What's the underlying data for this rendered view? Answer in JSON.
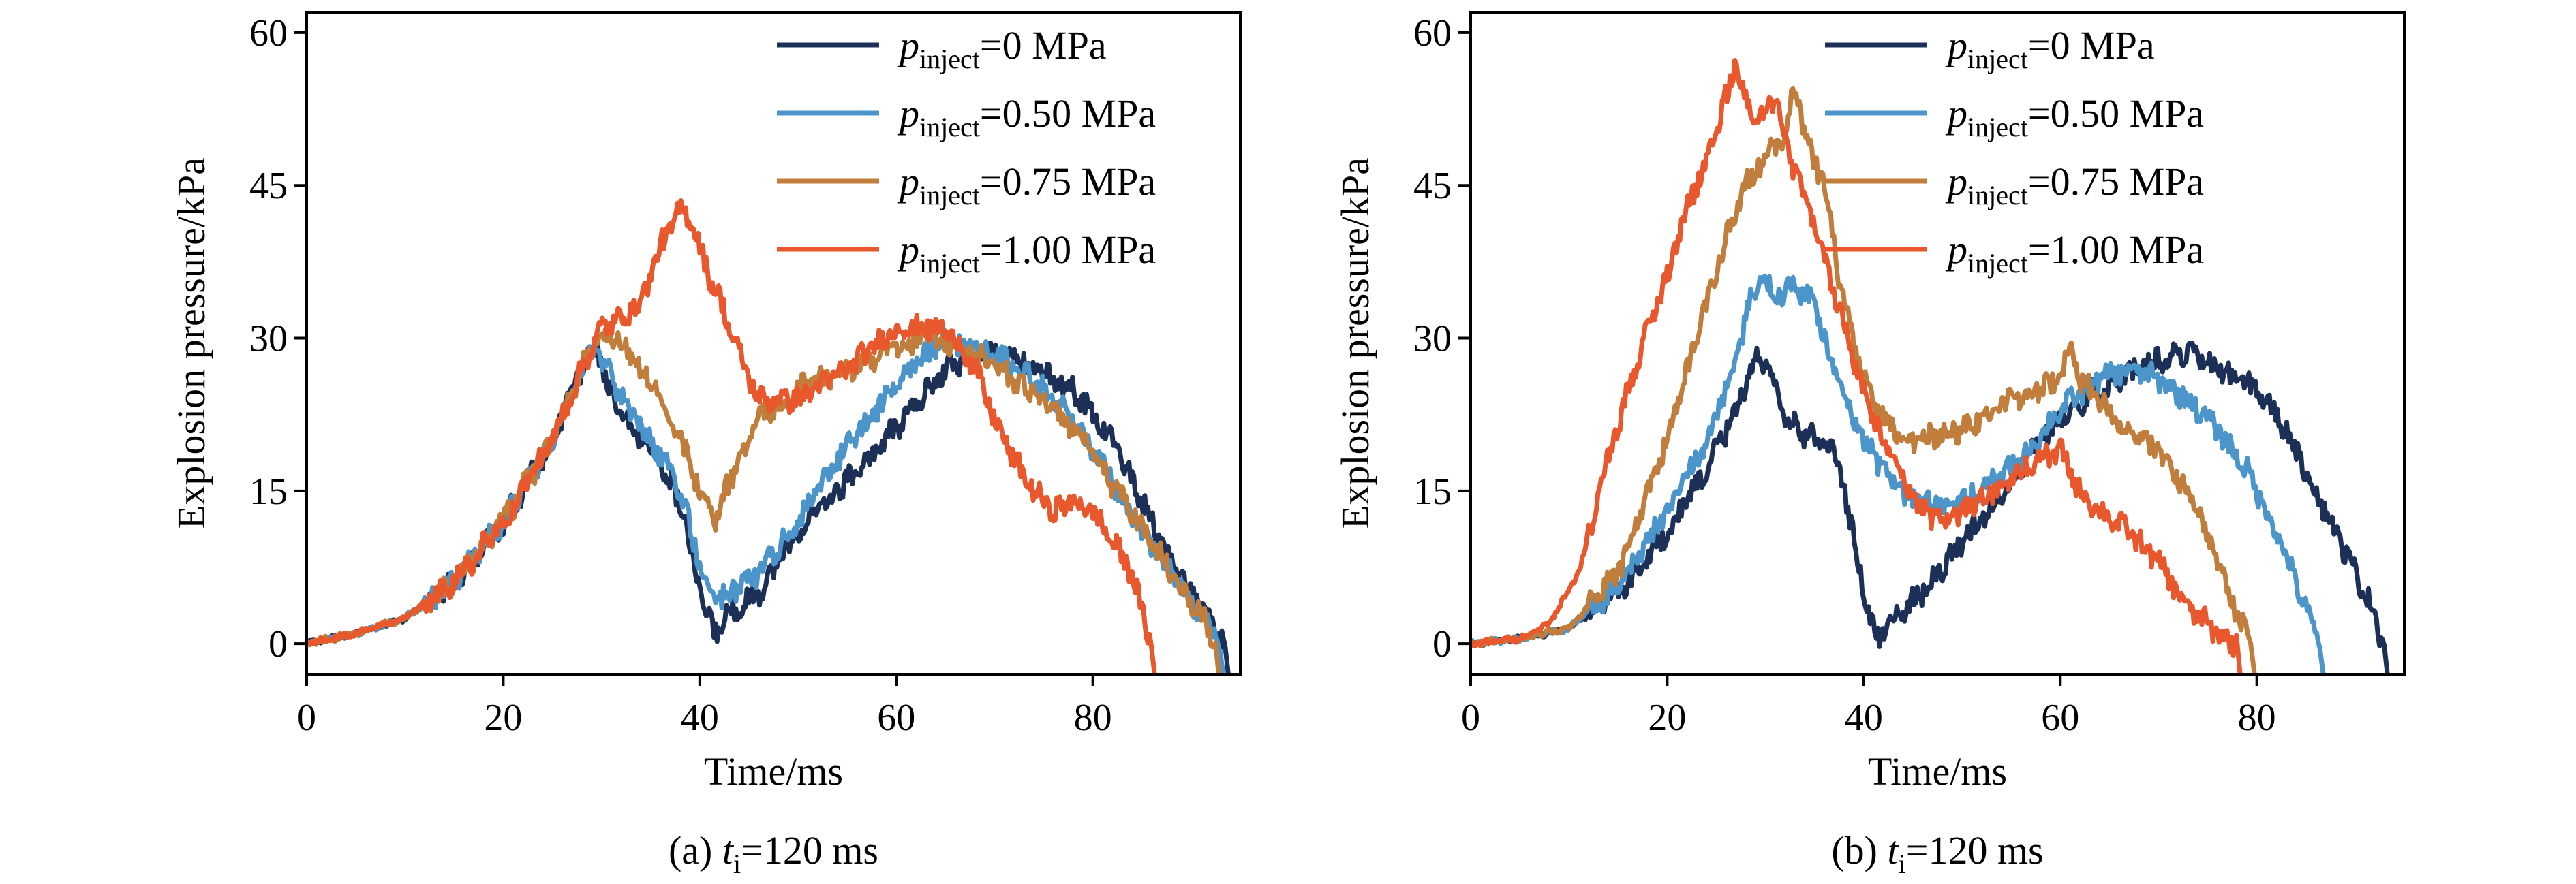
{
  "colors": {
    "p0": "#1b2f57",
    "p050": "#4b95cb",
    "p075": "#c07d3c",
    "p100": "#e8582c"
  },
  "chart_data": [
    {
      "type": "line",
      "panel": "a",
      "caption": {
        "prefix": "(a) ",
        "var": "t",
        "sub": "i",
        "rest": "=120 ms"
      },
      "xlabel": "Time/ms",
      "ylabel": "Explosion pressure/kPa",
      "xlim": [
        0,
        95
      ],
      "ylim": [
        -3,
        62
      ],
      "xticks": [
        0,
        20,
        40,
        60,
        80
      ],
      "yticks": [
        0,
        15,
        30,
        45,
        60
      ],
      "legend_position": "top-right",
      "series": [
        {
          "var": "p",
          "sub": "inject",
          "rest": "=0 MPa",
          "color_key": "p0",
          "x": [
            0,
            5,
            10,
            15,
            20,
            25,
            28,
            29.5,
            31,
            33,
            35,
            38,
            40,
            41.5,
            43,
            46,
            50,
            54,
            58,
            62,
            65,
            68,
            71,
            74,
            78,
            82,
            85,
            88,
            90,
            91.5,
            92.5,
            93.5
          ],
          "y": [
            0,
            1,
            2.5,
            6,
            12,
            20,
            27,
            29.5,
            24,
            21,
            19.5,
            14,
            5,
            1,
            3,
            5,
            11,
            15,
            19,
            23.5,
            27,
            28.5,
            28.5,
            27,
            25,
            20,
            14,
            8,
            5,
            3,
            1,
            0
          ]
        },
        {
          "var": "p",
          "sub": "inject",
          "rest": "=0.50 MPa",
          "color_key": "p050",
          "x": [
            0,
            5,
            10,
            15,
            20,
            25,
            28,
            29.5,
            31,
            33,
            35,
            38,
            40,
            41.5,
            43,
            46,
            50,
            54,
            58,
            62,
            65,
            68,
            71,
            74,
            78,
            82,
            85,
            88,
            90,
            91,
            92,
            93
          ],
          "y": [
            0,
            1,
            2.5,
            6,
            12,
            20,
            27,
            29,
            26,
            22.5,
            20,
            15,
            8,
            4,
            5,
            7,
            12,
            18,
            23,
            27.5,
            30,
            29,
            28,
            26,
            22,
            16,
            11,
            7,
            4,
            3,
            1.5,
            0
          ]
        },
        {
          "var": "p",
          "sub": "inject",
          "rest": "=0.75 MPa",
          "color_key": "p075",
          "x": [
            0,
            5,
            10,
            15,
            20,
            25,
            28,
            30,
            32,
            34,
            36,
            38,
            40,
            41.5,
            43,
            46,
            50,
            55,
            60,
            63,
            66,
            69,
            72,
            75,
            78,
            81,
            84,
            86,
            88,
            90,
            91.5,
            92.5
          ],
          "y": [
            0,
            1,
            2.5,
            6,
            12,
            20,
            27,
            30.5,
            29.5,
            27,
            24.5,
            20,
            15,
            12,
            16,
            22,
            25,
            27,
            29,
            30.5,
            29,
            28,
            26,
            24,
            21,
            17,
            13,
            10,
            7,
            4,
            2,
            0
          ]
        },
        {
          "var": "p",
          "sub": "inject",
          "rest": "=1.00 MPa",
          "color_key": "p100",
          "x": [
            0,
            5,
            10,
            15,
            20,
            25,
            28,
            30,
            32,
            34,
            36,
            38,
            39,
            40,
            41,
            42,
            43,
            44,
            46,
            50,
            55,
            60,
            62,
            64,
            66,
            68,
            70,
            72,
            74,
            76,
            78,
            80,
            82,
            84,
            85,
            86
          ],
          "y": [
            0,
            1,
            2.5,
            6,
            12,
            20,
            27,
            31,
            32,
            33.5,
            39,
            42.5,
            42,
            39,
            36,
            34,
            31,
            28.5,
            24,
            24,
            27,
            31,
            31,
            31,
            30,
            27,
            22,
            18,
            15,
            13,
            14,
            13,
            10,
            7,
            3,
            0
          ]
        }
      ]
    },
    {
      "type": "line",
      "panel": "b",
      "caption": {
        "prefix": "(b) ",
        "var": "t",
        "sub": "i",
        "rest": "=120 ms"
      },
      "xlabel": "Time/ms",
      "ylabel": "Explosion pressure/kPa",
      "xlim": [
        0,
        95
      ],
      "ylim": [
        -3,
        62
      ],
      "xticks": [
        0,
        20,
        40,
        60,
        80
      ],
      "yticks": [
        0,
        15,
        30,
        45,
        60
      ],
      "legend_position": "top-right",
      "series": [
        {
          "var": "p",
          "sub": "inject",
          "rest": "=0 MPa",
          "color_key": "p0",
          "x": [
            0,
            5,
            10,
            15,
            20,
            24,
            27,
            28.5,
            29.5,
            30.5,
            32,
            34,
            36,
            37.5,
            39,
            40.5,
            41.5,
            43,
            46,
            50,
            55,
            58,
            61,
            64,
            67,
            70,
            73,
            76,
            80,
            83,
            86,
            89,
            91,
            92,
            92.5,
            93
          ],
          "y": [
            0,
            0.5,
            1.5,
            5,
            11,
            17,
            23,
            27,
            28.5,
            26,
            22,
            20.5,
            20,
            18,
            10,
            3,
            0.5,
            2.5,
            5,
            10,
            16,
            20,
            23,
            25,
            26.5,
            28,
            28.5,
            27,
            25,
            21,
            15,
            9,
            5,
            3,
            1,
            0
          ]
        },
        {
          "var": "p",
          "sub": "inject",
          "rest": "=0.50 MPa",
          "color_key": "p050",
          "x": [
            0,
            5,
            10,
            15,
            20,
            24,
            27,
            28.5,
            30,
            31,
            33,
            35,
            36,
            38,
            40,
            42,
            45,
            48,
            52,
            56,
            60,
            64,
            67,
            70,
            73,
            76,
            79,
            82,
            84,
            85.5,
            86,
            86.5
          ],
          "y": [
            0,
            0.5,
            1.5,
            5.5,
            13,
            20,
            28,
            34,
            36,
            34,
            35,
            34,
            30,
            24,
            20,
            17,
            14,
            13.5,
            15,
            18,
            23,
            26,
            27,
            26,
            24,
            21,
            17,
            11,
            6,
            2,
            1,
            0
          ]
        },
        {
          "var": "p",
          "sub": "inject",
          "rest": "=0.75 MPa",
          "color_key": "p075",
          "x": [
            0,
            5,
            10,
            15,
            20,
            23,
            26,
            28,
            30,
            32,
            33,
            34,
            36,
            38,
            40,
            42,
            45,
            50,
            55,
            58,
            60,
            61,
            62,
            65,
            68,
            70,
            72,
            74,
            76,
            78,
            79,
            79.5
          ],
          "y": [
            0,
            0.5,
            1.5,
            7,
            20,
            30,
            40,
            45,
            48,
            50,
            55,
            50,
            45,
            33,
            26,
            22,
            20,
            21,
            24,
            25,
            26,
            29,
            26,
            23,
            20,
            19,
            16,
            13,
            8,
            3,
            1,
            0
          ]
        },
        {
          "var": "p",
          "sub": "inject",
          "rest": "=1.00 MPa",
          "color_key": "p100",
          "x": [
            0,
            5,
            8,
            11,
            14,
            17,
            20,
            22,
            24,
            25.5,
            27,
            28,
            29,
            30,
            31,
            32,
            34,
            36,
            38,
            40,
            42,
            44,
            46,
            48,
            52,
            56,
            60,
            62,
            64,
            67,
            70,
            72,
            73.5,
            75,
            76,
            77,
            78
          ],
          "y": [
            0,
            0.5,
            2,
            7,
            18,
            28,
            36,
            43,
            47,
            52,
            57,
            53,
            51,
            52,
            54,
            49,
            44,
            38,
            31,
            25,
            20,
            16,
            13,
            12,
            14,
            17,
            19,
            15,
            13,
            11,
            8,
            5,
            3,
            2,
            1,
            0.5,
            0
          ]
        }
      ]
    }
  ]
}
